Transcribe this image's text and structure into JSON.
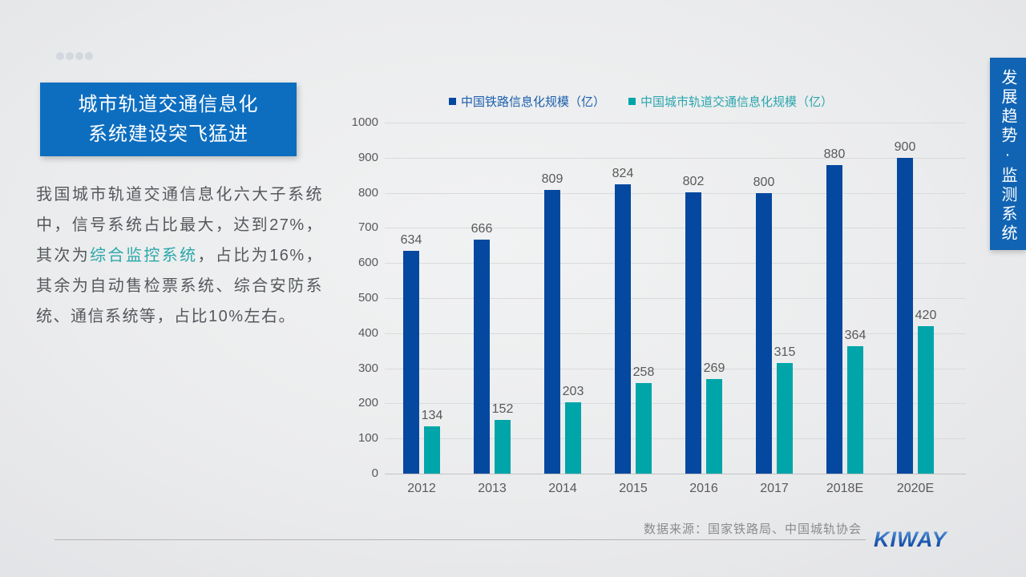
{
  "slide": {
    "dots_count": 4,
    "title_box": {
      "line1": "城市轨道交通信息化",
      "line2": "系统建设突飞猛进"
    },
    "body_text": {
      "part1": "我国城市轨道交通信息化六大子系统中，信号系统占比最大，达到27%，其次为",
      "highlight": "综合监控系统",
      "part2": "，占比为16%，其余为自动售检票系统、综合安防系统、通信系统等，占比10%左右。"
    },
    "side_tab_label": "发展趋势·监测系统",
    "footer": {
      "source": "数据来源：国家铁路局、中国城轨协会",
      "logo": "KIWAY"
    }
  },
  "chart_data": {
    "type": "bar",
    "title": "",
    "xlabel": "",
    "ylabel": "",
    "categories": [
      "2012",
      "2013",
      "2014",
      "2015",
      "2016",
      "2017",
      "2018E",
      "2020E"
    ],
    "series": [
      {
        "name": "中国铁路信息化规模（亿）",
        "color": "#04489f",
        "text_color": "#1a5fae",
        "values": [
          634,
          666,
          809,
          824,
          802,
          800,
          880,
          900
        ]
      },
      {
        "name": "中国城市轨道交通信息化规模（亿）",
        "color": "#00a5a9",
        "text_color": "#2aa6ae",
        "values": [
          134,
          152,
          203,
          258,
          269,
          315,
          364,
          420
        ]
      }
    ],
    "ylim": [
      0,
      1000
    ],
    "ytick_step": 100,
    "grid": true,
    "legend_position": "top"
  },
  "colors": {
    "title_box_bg": "#0d6ec0",
    "side_tab_bg": "#1164b4",
    "highlight_text": "#2ba7ab",
    "body_text": "#55585c",
    "axis_text": "#595959",
    "source_text": "#8b8b8b",
    "background": "#ebeced"
  }
}
